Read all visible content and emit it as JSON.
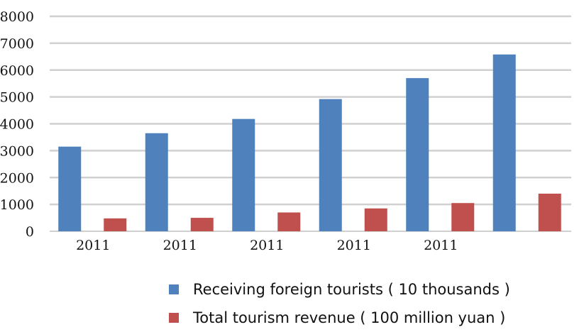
{
  "colors": {
    "series_1": "#4f81bd",
    "series_2": "#c0504d",
    "grid": "#d0d0d0"
  },
  "chart_data": {
    "type": "bar",
    "categories": [
      "2011",
      "2011",
      "2011",
      "2011",
      "2011",
      ""
    ],
    "series": [
      {
        "name": "Receiving foreign tourists ( 10 thousands )",
        "values": [
          3150,
          3650,
          4180,
          4920,
          5700,
          6580
        ]
      },
      {
        "name": "Total tourism revenue ( 100 million yuan )",
        "values": [
          480,
          500,
          700,
          850,
          1050,
          1400
        ]
      }
    ],
    "yticks": [
      "0",
      "1000",
      "2000",
      "3000",
      "4000",
      "5000",
      "6000",
      "7000",
      "8000"
    ],
    "ylim": [
      0,
      8000
    ],
    "grid": true,
    "legend_position": "bottom"
  }
}
